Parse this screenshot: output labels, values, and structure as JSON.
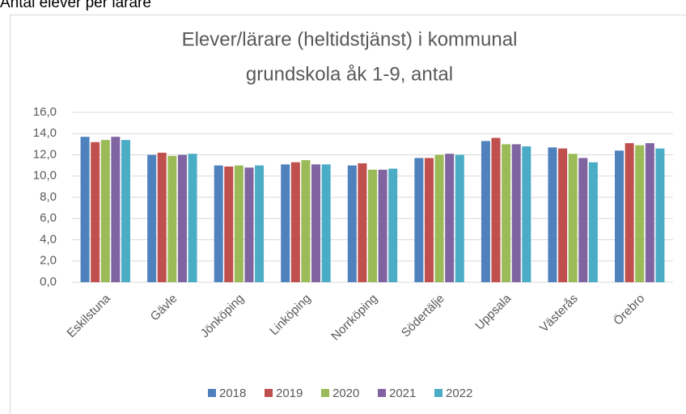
{
  "heading": "Antal elever per lärare",
  "chart_data": {
    "type": "bar",
    "title": [
      "Elever/lärare (heltidstjänst) i kommunal",
      "grundskola åk 1-9, antal"
    ],
    "categories": [
      "Eskilstuna",
      "Gävle",
      "Jönköping",
      "Linköping",
      "Norrköping",
      "Södertälje",
      "Uppsala",
      "Västerås",
      "Örebro"
    ],
    "series": [
      {
        "name": "2018",
        "color": "#4f81bd",
        "values": [
          13.7,
          12.0,
          11.0,
          11.1,
          11.0,
          11.7,
          13.3,
          12.7,
          12.4
        ]
      },
      {
        "name": "2019",
        "color": "#c0504d",
        "values": [
          13.2,
          12.2,
          10.9,
          11.3,
          11.2,
          11.7,
          13.6,
          12.6,
          13.1
        ]
      },
      {
        "name": "2020",
        "color": "#9bbb59",
        "values": [
          13.4,
          11.9,
          11.0,
          11.5,
          10.6,
          12.0,
          13.0,
          12.1,
          12.9
        ]
      },
      {
        "name": "2021",
        "color": "#8064a2",
        "values": [
          13.7,
          12.0,
          10.8,
          11.1,
          10.6,
          12.1,
          13.0,
          11.7,
          13.1
        ]
      },
      {
        "name": "2022",
        "color": "#4bacc6",
        "values": [
          13.4,
          12.1,
          11.0,
          11.1,
          10.7,
          12.0,
          12.8,
          11.3,
          12.6
        ]
      }
    ],
    "ylim": [
      0,
      16
    ],
    "yticks": [
      {
        "value": 0,
        "label": "0,0"
      },
      {
        "value": 2,
        "label": "2,0"
      },
      {
        "value": 4,
        "label": "4,0"
      },
      {
        "value": 6,
        "label": "6,0"
      },
      {
        "value": 8,
        "label": "8,0"
      },
      {
        "value": 10,
        "label": "10,0"
      },
      {
        "value": 12,
        "label": "12,0"
      },
      {
        "value": 14,
        "label": "14,0"
      },
      {
        "value": 16,
        "label": "16,0"
      }
    ],
    "grid": true
  }
}
